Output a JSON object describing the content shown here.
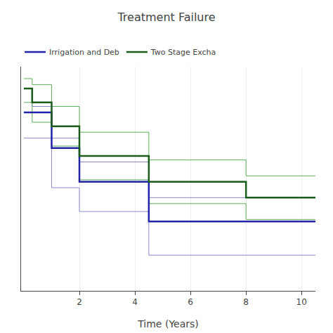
{
  "chart_data": {
    "type": "step",
    "title": "Treatment Failure",
    "xlabel": "Time (Years)",
    "xlim": [
      -0.1,
      10.5
    ],
    "ylim": [
      -0.05,
      1.08
    ],
    "xticks": [
      2,
      4,
      6,
      8,
      10
    ],
    "grid": true,
    "tick_labels": "x",
    "legend": "top",
    "series": [
      {
        "color": "#8888cc",
        "x": [
          0,
          0.3,
          0.3,
          1.0,
          1.0,
          2.0,
          2.0,
          4.5,
          4.5,
          10.5
        ],
        "values": [
          0.97,
          0.97,
          0.88,
          0.88,
          0.72,
          0.72,
          0.6,
          0.6,
          0.42,
          0.42
        ]
      },
      {
        "color": "#8888cc",
        "x": [
          0,
          1.0,
          1.0,
          2.0,
          2.0,
          4.5,
          4.5,
          8.0,
          8.0,
          10.5
        ],
        "values": [
          0.72,
          0.72,
          0.47,
          0.47,
          0.35,
          0.35,
          0.13,
          0.13,
          0.13,
          0.13
        ]
      },
      {
        "color": "#5ab05a",
        "x": [
          0,
          0.3,
          0.3,
          1.0,
          1.0,
          2.0,
          2.0,
          4.5,
          4.5,
          8.0,
          8.0,
          10.5
        ],
        "values": [
          1.02,
          1.02,
          0.99,
          0.99,
          0.88,
          0.88,
          0.75,
          0.75,
          0.61,
          0.61,
          0.53,
          0.53
        ]
      },
      {
        "color": "#5ab05a",
        "x": [
          0,
          0.3,
          0.3,
          1.0,
          1.0,
          2.0,
          2.0,
          4.5,
          4.5,
          8.0,
          8.0,
          10.5
        ],
        "values": [
          0.9,
          0.9,
          0.8,
          0.8,
          0.68,
          0.68,
          0.51,
          0.51,
          0.39,
          0.39,
          0.31,
          0.31
        ]
      },
      {
        "name": "Irrigation and Deb",
        "color": "#2222aa",
        "x": [
          0,
          1.0,
          1.0,
          2.0,
          2.0,
          4.5,
          4.5,
          8.0,
          8.0,
          10.5
        ],
        "values": [
          0.85,
          0.85,
          0.67,
          0.67,
          0.5,
          0.5,
          0.3,
          0.3,
          0.3,
          0.3
        ]
      },
      {
        "name": "Two Stage Excha",
        "color": "#1a5c1a",
        "x": [
          0,
          0.3,
          0.3,
          1.0,
          1.0,
          2.0,
          2.0,
          4.5,
          4.5,
          8.0,
          8.0,
          10.5
        ],
        "values": [
          0.97,
          0.97,
          0.9,
          0.9,
          0.78,
          0.78,
          0.63,
          0.63,
          0.5,
          0.5,
          0.42,
          0.42
        ]
      }
    ]
  }
}
